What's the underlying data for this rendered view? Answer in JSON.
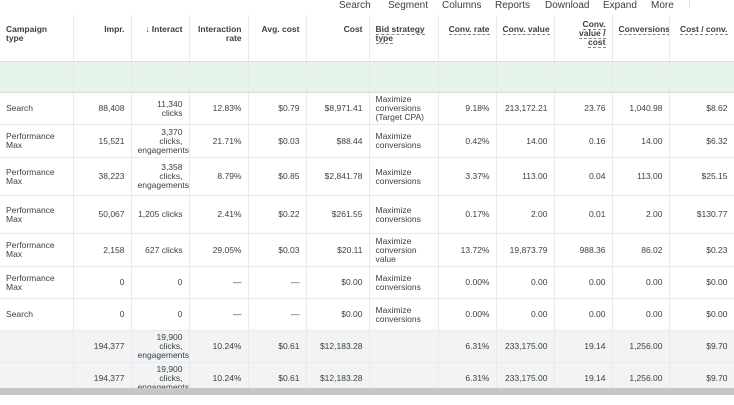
{
  "toolbar": {
    "search": "Search",
    "segment": "Segment",
    "columns": "Columns",
    "reports": "Reports",
    "download": "Download",
    "expand": "Expand",
    "more": "More"
  },
  "columns": {
    "campaign_type": "Campaign type",
    "impr": "Impr.",
    "interactions": "Interact",
    "interaction_rate": "Interaction rate",
    "avg_cost": "Avg. cost",
    "cost": "Cost",
    "bid_strategy_type": "Bid strategy type",
    "conv_rate": "Conv. rate",
    "conv_value": "Conv. value",
    "conv_value_cost": "Conv. value / cost",
    "conversions": "Conversions",
    "cost_conv": "Cost / conv."
  },
  "rows": [
    {
      "campaign_type": "Search",
      "impr": "88,408",
      "interactions": "11,340 clicks",
      "interaction_rate": "12.83%",
      "avg_cost": "$0.79",
      "cost": "$8,971.41",
      "bid_strategy": "Maximize conversions (Target CPA)",
      "conv_rate": "9.18%",
      "conv_value": "213,172.21",
      "conv_value_cost": "23.76",
      "conversions": "1,040.98",
      "cost_conv": "$8.62"
    },
    {
      "campaign_type": "Performance Max",
      "impr": "15,521",
      "interactions": "3,370 clicks, engagements",
      "interaction_rate": "21.71%",
      "avg_cost": "$0.03",
      "cost": "$88.44",
      "bid_strategy": "Maximize conversions",
      "conv_rate": "0.42%",
      "conv_value": "14.00",
      "conv_value_cost": "0.16",
      "conversions": "14.00",
      "cost_conv": "$6.32"
    },
    {
      "campaign_type": "Performance Max",
      "impr": "38,223",
      "interactions": "3,358 clicks, engagements",
      "interaction_rate": "8.79%",
      "avg_cost": "$0.85",
      "cost": "$2,841.78",
      "bid_strategy": "Maximize conversions",
      "conv_rate": "3.37%",
      "conv_value": "113.00",
      "conv_value_cost": "0.04",
      "conversions": "113.00",
      "cost_conv": "$25.15"
    },
    {
      "campaign_type": "Performance Max",
      "impr": "50,067",
      "interactions": "1,205 clicks",
      "interaction_rate": "2.41%",
      "avg_cost": "$0.22",
      "cost": "$261.55",
      "bid_strategy": "Maximize conversions",
      "conv_rate": "0.17%",
      "conv_value": "2.00",
      "conv_value_cost": "0.01",
      "conversions": "2.00",
      "cost_conv": "$130.77"
    },
    {
      "campaign_type": "Performance Max",
      "impr": "2,158",
      "interactions": "627 clicks",
      "interaction_rate": "29.05%",
      "avg_cost": "$0.03",
      "cost": "$20.11",
      "bid_strategy": "Maximize conversion value",
      "conv_rate": "13.72%",
      "conv_value": "19,873.79",
      "conv_value_cost": "988.36",
      "conversions": "86.02",
      "cost_conv": "$0.23"
    },
    {
      "campaign_type": "Performance Max",
      "impr": "0",
      "interactions": "0",
      "interaction_rate": "—",
      "avg_cost": "—",
      "cost": "$0.00",
      "bid_strategy": "Maximize conversions",
      "conv_rate": "0.00%",
      "conv_value": "0.00",
      "conv_value_cost": "0.00",
      "conversions": "0.00",
      "cost_conv": "$0.00"
    },
    {
      "campaign_type": "Search",
      "impr": "0",
      "interactions": "0",
      "interaction_rate": "—",
      "avg_cost": "—",
      "cost": "$0.00",
      "bid_strategy": "Maximize conversions",
      "conv_rate": "0.00%",
      "conv_value": "0.00",
      "conv_value_cost": "0.00",
      "conversions": "0.00",
      "cost_conv": "$0.00"
    }
  ],
  "totals": [
    {
      "impr": "194,377",
      "interactions": "19,900 clicks, engagements",
      "interaction_rate": "10.24%",
      "avg_cost": "$0.61",
      "cost": "$12,183.28",
      "conv_rate": "6.31%",
      "conv_value": "233,175.00",
      "conv_value_cost": "19.14",
      "conversions": "1,256.00",
      "cost_conv": "$9.70"
    },
    {
      "impr": "194,377",
      "interactions": "19,900 clicks, engagements",
      "interaction_rate": "10.24%",
      "avg_cost": "$0.61",
      "cost": "$12,183.28",
      "conv_rate": "6.31%",
      "conv_value": "233,175.00",
      "conv_value_cost": "19.14",
      "conversions": "1,256.00",
      "cost_conv": "$9.70"
    }
  ]
}
